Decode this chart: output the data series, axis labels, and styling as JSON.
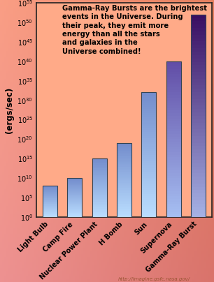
{
  "categories": [
    "Light Bulb",
    "Camp Fire",
    "Nuclear Power Plant",
    "H Bomb",
    "Sun",
    "Supernova",
    "Gamma-Ray Burst"
  ],
  "log_values": [
    8,
    10,
    15,
    19,
    32,
    40,
    52
  ],
  "bar_color_bottom": [
    "#aaddff",
    "#aaddff",
    "#aaddff",
    "#aaddff",
    "#aaddff",
    "#aaddff",
    "#aaddff"
  ],
  "bar_color_top_blue": "#7799cc",
  "bar_color_top_purple": "#550088",
  "bar_color_bottom_blue": "#bbddff",
  "bar_color_bottom_purple": "#9988cc",
  "ylabel": "Peak Power\n(ergs/sec)",
  "ymin": 0,
  "ymax": 55,
  "yticks": [
    0,
    5,
    10,
    15,
    20,
    25,
    30,
    35,
    40,
    45,
    50,
    55
  ],
  "annotation": "Gamma-Ray Bursts are the brightest\nevents in the Universe. During\ntheir peak, they emit more\nenergy than all the stars\nand galaxies in the\nUniverse combined!",
  "url": "http://imagine.gsfc.nasa.gov/",
  "bg_left": "#ffbb88",
  "bg_right": "#ff8866",
  "plot_bg": "#ffaa88"
}
